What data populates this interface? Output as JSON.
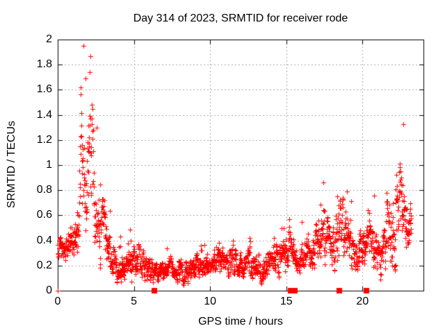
{
  "colors": {
    "points": "#ff0000",
    "grid": "#a6a6a6",
    "axis": "#000000",
    "text": "#000000",
    "background": "#ffffff"
  },
  "chart_data": {
    "type": "scatter",
    "title": "Day 314 of 2023, SRMTID for receiver rode",
    "xlabel": "GPS time / hours",
    "ylabel": "SRMTID / TECUs",
    "xlim": [
      0,
      24
    ],
    "ylim": [
      0,
      2
    ],
    "grid": true,
    "legend": "none",
    "xticks": [
      {
        "v": 0,
        "label": "0"
      },
      {
        "v": 5,
        "label": "5"
      },
      {
        "v": 10,
        "label": "10"
      },
      {
        "v": 15,
        "label": "15"
      },
      {
        "v": 20,
        "label": "20"
      }
    ],
    "yticks": [
      {
        "v": 0,
        "label": "0"
      },
      {
        "v": 0.2,
        "label": "0.2"
      },
      {
        "v": 0.4,
        "label": "0.4"
      },
      {
        "v": 0.6,
        "label": "0.6"
      },
      {
        "v": 0.8,
        "label": "0.8"
      },
      {
        "v": 1,
        "label": "1"
      },
      {
        "v": 1.2,
        "label": "1.2"
      },
      {
        "v": 1.4,
        "label": "1.4"
      },
      {
        "v": 1.6,
        "label": "1.6"
      },
      {
        "v": 1.8,
        "label": "1.8"
      },
      {
        "v": 2,
        "label": "2"
      }
    ],
    "series": [
      {
        "name": "srmtid",
        "marker": "plus",
        "marker_px": 7,
        "color": "#ff0000",
        "synthesis": {
          "seed": 1234,
          "t_start": 0,
          "t_end": 23.2,
          "dt_hours": 0.0125,
          "explicit_points": [
            [
              0,
              0
            ]
          ],
          "envelope_keyframes": [
            [
              0.0,
              0.35,
              0.07
            ],
            [
              0.3,
              0.32,
              0.07
            ],
            [
              0.7,
              0.36,
              0.08
            ],
            [
              1.0,
              0.4,
              0.1
            ],
            [
              1.3,
              0.55,
              0.18
            ],
            [
              1.5,
              0.85,
              0.3
            ],
            [
              1.7,
              1.0,
              0.32
            ],
            [
              1.9,
              0.85,
              0.28
            ],
            [
              2.1,
              1.1,
              0.4
            ],
            [
              2.25,
              1.0,
              0.38
            ],
            [
              2.4,
              0.75,
              0.25
            ],
            [
              2.6,
              0.6,
              0.18
            ],
            [
              2.8,
              0.52,
              0.15
            ],
            [
              3.0,
              0.48,
              0.15
            ],
            [
              3.2,
              0.42,
              0.14
            ],
            [
              3.5,
              0.3,
              0.1
            ],
            [
              3.8,
              0.22,
              0.08
            ],
            [
              4.2,
              0.18,
              0.07
            ],
            [
              4.6,
              0.18,
              0.07
            ],
            [
              5.0,
              0.22,
              0.08
            ],
            [
              5.3,
              0.28,
              0.09
            ],
            [
              5.6,
              0.2,
              0.07
            ],
            [
              6.0,
              0.16,
              0.06
            ],
            [
              6.5,
              0.15,
              0.06
            ],
            [
              7.0,
              0.16,
              0.06
            ],
            [
              7.5,
              0.15,
              0.05
            ],
            [
              8.0,
              0.16,
              0.06
            ],
            [
              8.5,
              0.17,
              0.06
            ],
            [
              9.0,
              0.19,
              0.06
            ],
            [
              9.4,
              0.21,
              0.07
            ],
            [
              9.8,
              0.18,
              0.06
            ],
            [
              10.2,
              0.2,
              0.07
            ],
            [
              10.6,
              0.21,
              0.07
            ],
            [
              11.0,
              0.21,
              0.07
            ],
            [
              11.4,
              0.23,
              0.08
            ],
            [
              11.8,
              0.17,
              0.07
            ],
            [
              12.2,
              0.21,
              0.07
            ],
            [
              12.6,
              0.23,
              0.08
            ],
            [
              13.0,
              0.21,
              0.07
            ],
            [
              13.4,
              0.18,
              0.07
            ],
            [
              13.8,
              0.21,
              0.07
            ],
            [
              14.2,
              0.23,
              0.08
            ],
            [
              14.6,
              0.26,
              0.08
            ],
            [
              15.0,
              0.3,
              0.1
            ],
            [
              15.25,
              0.4,
              0.12
            ],
            [
              15.5,
              0.3,
              0.09
            ],
            [
              16.0,
              0.28,
              0.09
            ],
            [
              16.5,
              0.3,
              0.1
            ],
            [
              17.0,
              0.33,
              0.11
            ],
            [
              17.4,
              0.42,
              0.14
            ],
            [
              17.7,
              0.4,
              0.13
            ],
            [
              18.0,
              0.35,
              0.11
            ],
            [
              18.4,
              0.45,
              0.15
            ],
            [
              18.7,
              0.47,
              0.14
            ],
            [
              19.0,
              0.38,
              0.11
            ],
            [
              19.4,
              0.35,
              0.1
            ],
            [
              19.8,
              0.33,
              0.1
            ],
            [
              20.2,
              0.38,
              0.11
            ],
            [
              20.5,
              0.44,
              0.12
            ],
            [
              20.8,
              0.36,
              0.12
            ],
            [
              21.2,
              0.25,
              0.11
            ],
            [
              21.6,
              0.45,
              0.18
            ],
            [
              21.9,
              0.52,
              0.18
            ],
            [
              22.15,
              0.5,
              0.3
            ],
            [
              22.45,
              0.8,
              0.18
            ],
            [
              22.7,
              0.6,
              0.18
            ],
            [
              23.0,
              0.55,
              0.15
            ],
            [
              23.2,
              0.5,
              0.12
            ]
          ],
          "spikes": [
            [
              1.5,
              1.62,
              0.08
            ],
            [
              2.15,
              1.87,
              0.12
            ],
            [
              2.3,
              1.45,
              0.03
            ],
            [
              2.55,
              1.3,
              0.02
            ],
            [
              3.05,
              0.72,
              0.06
            ],
            [
              4.8,
              0.4,
              0.04
            ],
            [
              9.4,
              0.36,
              0.04
            ],
            [
              10.6,
              0.38,
              0.04
            ],
            [
              11.5,
              0.4,
              0.04
            ],
            [
              12.6,
              0.42,
              0.04
            ],
            [
              14.2,
              0.42,
              0.05
            ],
            [
              15.2,
              0.57,
              0.06
            ],
            [
              17.45,
              0.64,
              0.09
            ],
            [
              18.45,
              0.68,
              0.1
            ],
            [
              20.45,
              0.62,
              0.07
            ],
            [
              21.6,
              0.78,
              0.07
            ],
            [
              22.2,
              0.92,
              0.04
            ],
            [
              22.45,
              1.01,
              0.1
            ]
          ]
        }
      },
      {
        "name": "baseline-flags",
        "marker": "filled-square",
        "marker_px": 8,
        "color": "#ff0000",
        "points": [
          [
            6.35,
            0
          ],
          [
            15.3,
            0
          ],
          [
            15.55,
            0
          ],
          [
            18.5,
            0
          ],
          [
            20.25,
            0
          ]
        ]
      }
    ]
  }
}
